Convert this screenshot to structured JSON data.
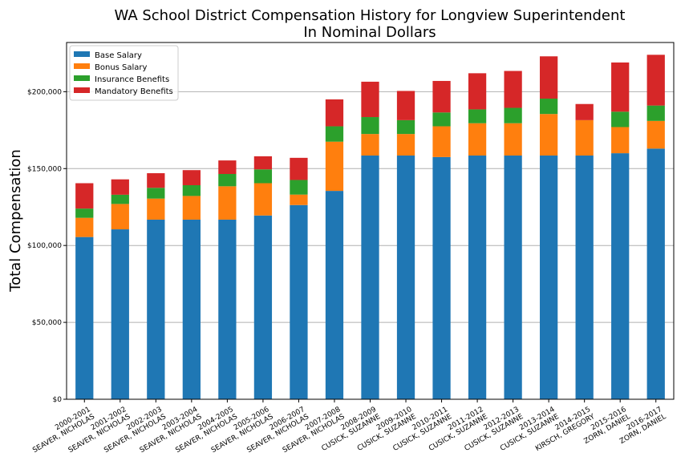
{
  "chart_data": {
    "type": "bar",
    "stacked": true,
    "title": "WA School District Compensation History for Longview Superintendent",
    "subtitle": "In Nominal Dollars",
    "xlabel": "",
    "ylabel": "Total Compensation",
    "ylim": [
      0,
      232000
    ],
    "yticks": [
      0,
      50000,
      100000,
      150000,
      200000
    ],
    "ytick_labels": [
      "$0",
      "$50,000",
      "$100,000",
      "$150,000",
      "$200,000"
    ],
    "grid": "horizontal",
    "legend_position": "top-left",
    "categories": [
      [
        "2000-2001",
        "SEAVER, NICHOLAS"
      ],
      [
        "2001-2002",
        "SEAVER, NICHOLAS"
      ],
      [
        "2002-2003",
        "SEAVER, NICHOLAS"
      ],
      [
        "2003-2004",
        "SEAVER, NICHOLAS"
      ],
      [
        "2004-2005",
        "SEAVER, NICHOLAS"
      ],
      [
        "2005-2006",
        "SEAVER, NICHOLAS"
      ],
      [
        "2006-2007",
        "SEAVER, NICHOLAS"
      ],
      [
        "2007-2008",
        "SEAVER, NICHOLAS"
      ],
      [
        "2008-2009",
        "CUSICK, SUZANNE"
      ],
      [
        "2009-2010",
        "CUSICK, SUZANNE"
      ],
      [
        "2010-2011",
        "CUSICK, SUZANNE"
      ],
      [
        "2011-2012",
        "CUSICK, SUZANNE"
      ],
      [
        "2012-2013",
        "CUSICK, SUZANNE"
      ],
      [
        "2013-2014",
        "CUSICK, SUZANNE"
      ],
      [
        "2014-2015",
        "KIRSCH, GREGORY"
      ],
      [
        "2015-2016",
        "ZORN, DANIEL"
      ],
      [
        "2016-2017",
        "ZORN, DANIEL"
      ]
    ],
    "series": [
      {
        "name": "Base Salary",
        "color": "#1f77b4",
        "values": [
          105500,
          110500,
          116800,
          116800,
          116800,
          119500,
          126300,
          135500,
          158500,
          158500,
          157500,
          158500,
          158500,
          158500,
          158500,
          160000,
          163000
        ]
      },
      {
        "name": "Bonus Salary",
        "color": "#ff7f0e",
        "values": [
          12500,
          16500,
          13700,
          15400,
          21700,
          21000,
          6800,
          32000,
          14000,
          14000,
          20000,
          21000,
          21000,
          27000,
          23000,
          17000,
          18000
        ]
      },
      {
        "name": "Insurance Benefits",
        "color": "#2ca02c",
        "values": [
          6000,
          6000,
          7000,
          7000,
          8000,
          9000,
          9500,
          10000,
          11000,
          9000,
          9000,
          9000,
          10000,
          10000,
          0,
          10000,
          10000
        ]
      },
      {
        "name": "Mandatory Benefits",
        "color": "#d62728",
        "values": [
          16500,
          10000,
          9500,
          9800,
          8800,
          8500,
          14400,
          17500,
          23000,
          19000,
          20500,
          23500,
          24000,
          27500,
          10500,
          32000,
          33000
        ]
      }
    ]
  }
}
